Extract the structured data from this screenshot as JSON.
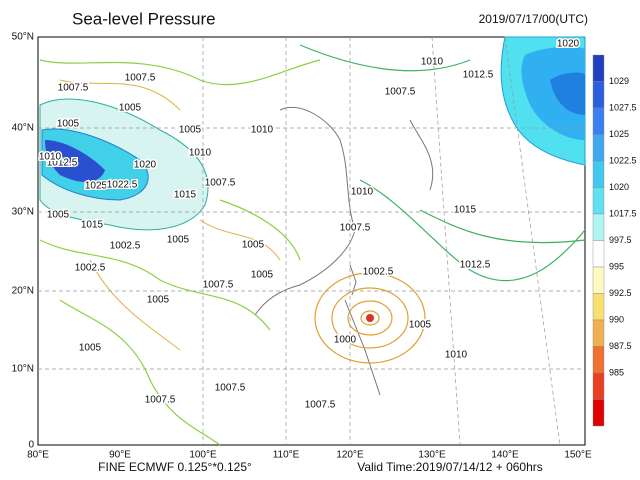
{
  "header": {
    "title": "Sea-level Pressure",
    "time": "2019/07/17/00(UTC)"
  },
  "axes": {
    "x_labels": [
      "80°E",
      "90°E",
      "100°E",
      "110°E",
      "120°E",
      "130°E",
      "140°E",
      "150°E"
    ],
    "y_labels": [
      "50°N",
      "40°N",
      "30°N",
      "20°N",
      "10°N",
      "0"
    ]
  },
  "colorbar": {
    "labels": [
      "1029",
      "1027.5",
      "1025",
      "1022.5",
      "1020",
      "1017.5",
      "997.5",
      "995",
      "992.5",
      "990",
      "987.5",
      "985"
    ]
  },
  "contour_labels": [
    "1020",
    "1010",
    "1012.5",
    "1007.5",
    "1007.5",
    "1007.5",
    "1005",
    "1005",
    "1005",
    "1010",
    "1010",
    "1020",
    "1012.5",
    "1010",
    "1025",
    "1022.5",
    "1015",
    "1007.5",
    "1010",
    "1005",
    "1015",
    "1005",
    "1007.5",
    "1015",
    "1002.5",
    "1005",
    "1012.5",
    "1002.5",
    "1002.5",
    "1005",
    "1005",
    "1007.5",
    "1005",
    "1000",
    "1010",
    "1005",
    "1007.5",
    "1007.5",
    "1007.5"
  ],
  "footer": {
    "model": "FINE ECMWF 0.125°*0.125°",
    "valid": "Valid Time:2019/07/14/12 + 060hrs"
  }
}
